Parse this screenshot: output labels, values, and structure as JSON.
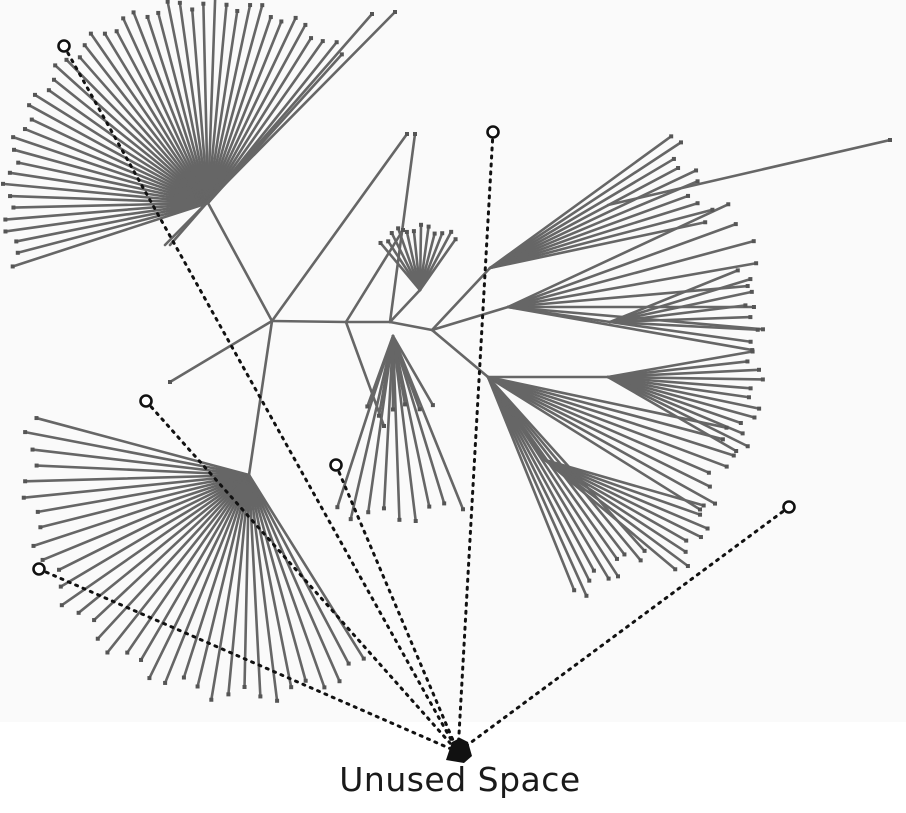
{
  "label": "Unused Space",
  "colors": {
    "background": "#fafafa",
    "edge": "#666666",
    "node": "#555555",
    "dotted": "#111111",
    "marker": "#111111"
  }
}
